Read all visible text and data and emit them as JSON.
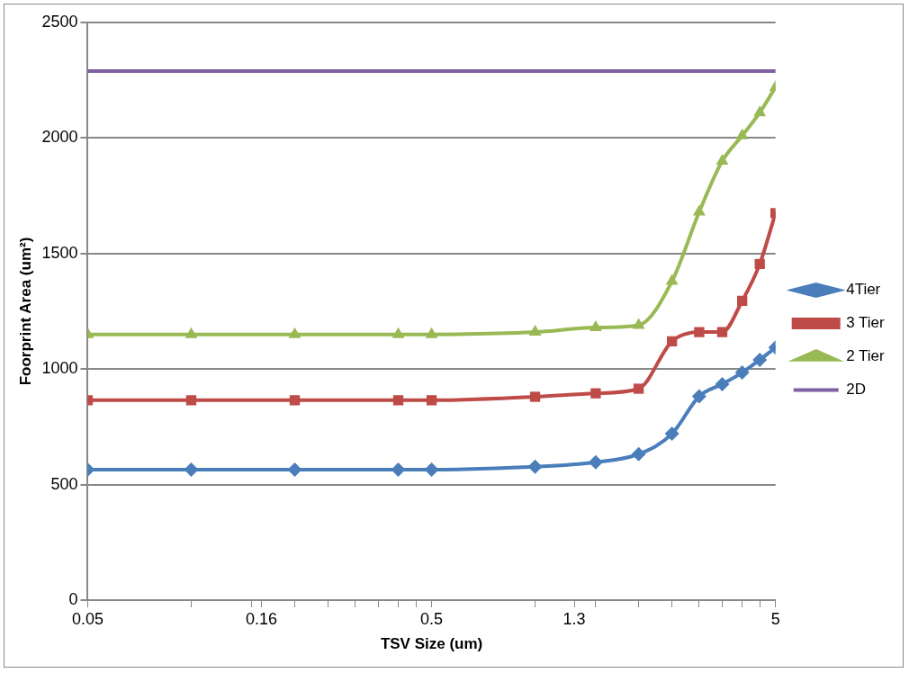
{
  "chart_data": {
    "type": "line",
    "xlabel": "TSV Size (um)",
    "ylabel": "Foorprint Area (um²)",
    "x": [
      0.05,
      0.1,
      0.2,
      0.4,
      0.5,
      1,
      1.5,
      2,
      2.5,
      3,
      3.5,
      4,
      4.5,
      5
    ],
    "log": "x",
    "xlim": [
      0.05,
      5
    ],
    "xticks": [
      0.05,
      {
        "value": 0.1,
        "label": null
      },
      {
        "value": 0.15,
        "label": null
      },
      0.16,
      {
        "value": 0.2,
        "label": null
      },
      {
        "value": 0.25,
        "label": null
      },
      {
        "value": 0.3,
        "label": null
      },
      {
        "value": 0.35,
        "label": null
      },
      {
        "value": 0.4,
        "label": null
      },
      {
        "value": 0.45,
        "label": null
      },
      0.5,
      {
        "value": 1,
        "label": null
      },
      {
        "value": 1.5,
        "label": null
      },
      1.3,
      {
        "value": 2,
        "label": null
      },
      {
        "value": 2.5,
        "label": null
      },
      {
        "value": 3,
        "label": null
      },
      {
        "value": 3.5,
        "label": null
      },
      {
        "value": 4,
        "label": null
      },
      {
        "value": 4.5,
        "label": null
      },
      5
    ],
    "ylim": [
      0,
      2500
    ],
    "yticks": [
      0,
      500,
      1000,
      1500,
      2000,
      2500
    ],
    "grid": "y",
    "legend": "right",
    "series": [
      {
        "name": "4Tier",
        "color": "#4a7ebb",
        "marker": "diamond",
        "values": [
          565,
          565,
          565,
          565,
          565,
          577,
          597,
          632,
          720,
          882,
          935,
          985,
          1040,
          1093
        ]
      },
      {
        "name": "3 Tier",
        "color": "#be4b48",
        "marker": "square",
        "values": [
          865,
          865,
          865,
          865,
          865,
          880,
          895,
          915,
          1120,
          1160,
          1160,
          1295,
          1455,
          1675
        ]
      },
      {
        "name": "2 Tier",
        "color": "#98b954",
        "marker": "triangle",
        "values": [
          1150,
          1150,
          1150,
          1150,
          1150,
          1160,
          1180,
          1190,
          1380,
          1680,
          1900,
          2010,
          2110,
          2220
        ]
      },
      {
        "name": "2D",
        "color": "#7d60a0",
        "marker": "none",
        "values": [
          2290,
          2290,
          2290,
          2290,
          2290,
          2290,
          2290,
          2290,
          2290,
          2290,
          2290,
          2290,
          2290,
          2290
        ]
      }
    ]
  }
}
